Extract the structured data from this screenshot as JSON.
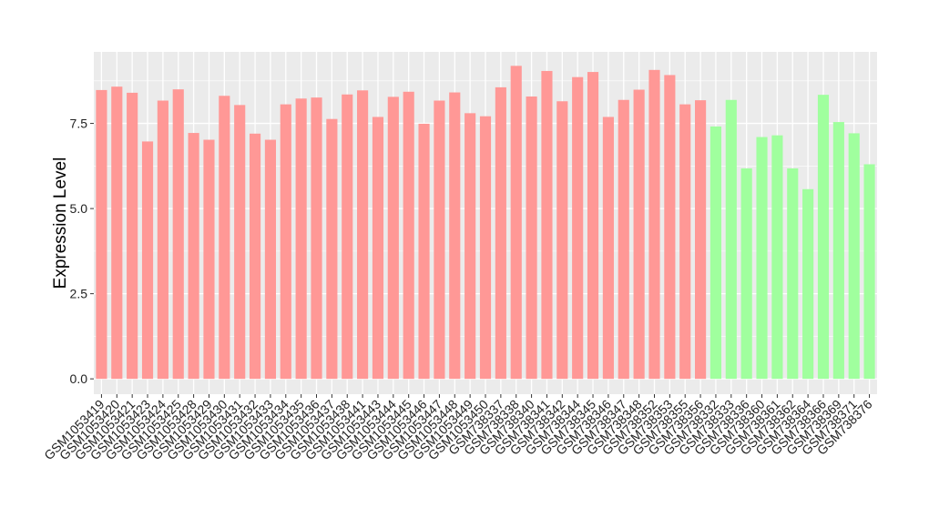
{
  "chart_data": {
    "type": "bar",
    "title": "",
    "xlabel": "",
    "ylabel": "Expression Level",
    "ylim": [
      -0.45,
      9.6
    ],
    "yticks": [
      0.0,
      2.5,
      5.0,
      7.5
    ],
    "ytick_labels": [
      "0.0",
      "2.5",
      "5.0",
      "7.5"
    ],
    "grid": true,
    "legend": "none",
    "colors": {
      "group1": "#ff9896",
      "group2": "#a0ff9e",
      "panel": "#ebebeb",
      "gridline": "#ffffff"
    },
    "categories": [
      "GSM1053419",
      "GSM1053420",
      "GSM1053421",
      "GSM1053423",
      "GSM1053424",
      "GSM1053425",
      "GSM1053428",
      "GSM1053429",
      "GSM1053430",
      "GSM1053431",
      "GSM1053432",
      "GSM1053433",
      "GSM1053434",
      "GSM1053435",
      "GSM1053436",
      "GSM1053437",
      "GSM1053438",
      "GSM1053441",
      "GSM1053443",
      "GSM1053444",
      "GSM1053445",
      "GSM1053446",
      "GSM1053447",
      "GSM1053448",
      "GSM1053449",
      "GSM1053450",
      "GSM738337",
      "GSM738338",
      "GSM738340",
      "GSM738341",
      "GSM738342",
      "GSM738344",
      "GSM738345",
      "GSM738346",
      "GSM738347",
      "GSM738348",
      "GSM738352",
      "GSM738353",
      "GSM738355",
      "GSM738356",
      "GSM738332",
      "GSM738333",
      "GSM738336",
      "GSM738360",
      "GSM738361",
      "GSM738362",
      "GSM738364",
      "GSM738366",
      "GSM738369",
      "GSM738371",
      "GSM738376"
    ],
    "values": [
      8.48,
      8.58,
      8.4,
      6.97,
      8.17,
      8.5,
      7.22,
      7.02,
      8.31,
      8.04,
      7.2,
      7.02,
      8.06,
      8.23,
      8.26,
      7.63,
      8.35,
      8.47,
      7.69,
      8.28,
      8.43,
      7.49,
      8.17,
      8.41,
      7.8,
      7.71,
      8.56,
      9.19,
      8.29,
      9.04,
      8.15,
      8.86,
      9.01,
      7.69,
      8.19,
      8.49,
      9.07,
      8.92,
      8.06,
      8.18,
      7.41,
      8.19,
      6.18,
      7.1,
      7.15,
      6.18,
      5.57,
      8.34,
      7.54,
      7.21,
      6.3
    ],
    "groups": [
      1,
      1,
      1,
      1,
      1,
      1,
      1,
      1,
      1,
      1,
      1,
      1,
      1,
      1,
      1,
      1,
      1,
      1,
      1,
      1,
      1,
      1,
      1,
      1,
      1,
      1,
      1,
      1,
      1,
      1,
      1,
      1,
      1,
      1,
      1,
      1,
      1,
      1,
      1,
      1,
      2,
      2,
      2,
      2,
      2,
      2,
      2,
      2,
      2,
      2,
      2
    ]
  }
}
